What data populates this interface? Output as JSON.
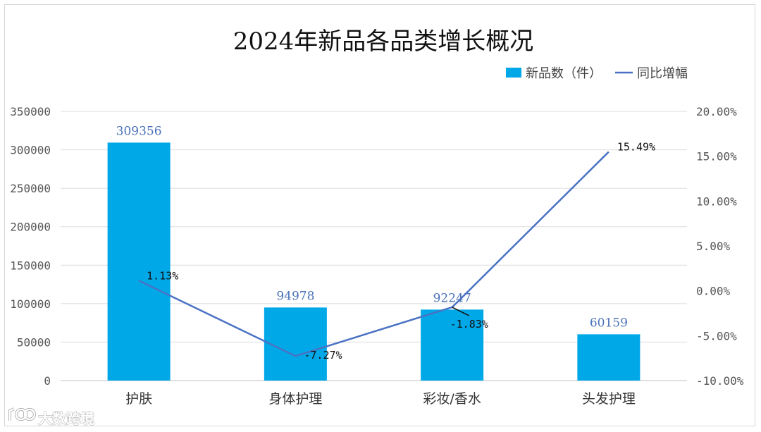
{
  "chart_data": {
    "type": "bar",
    "title": "2024年新品各品类增长概况",
    "categories": [
      "护肤",
      "身体护理",
      "彩妆/香水",
      "头发护理"
    ],
    "series": [
      {
        "name": "新品数（件）",
        "kind": "bar",
        "axis": "left",
        "color": "#00a8e8",
        "values": [
          309356,
          94978,
          92247,
          60159
        ],
        "labels": [
          "309356",
          "94978",
          "92247",
          "60159"
        ]
      },
      {
        "name": "同比增幅",
        "kind": "line",
        "axis": "right",
        "color": "#4a72c4",
        "values": [
          1.13,
          -7.27,
          -1.83,
          15.49
        ],
        "labels": [
          "1.13%",
          "-7.27%",
          "-1.83%",
          "15.49%"
        ]
      }
    ],
    "left_axis": {
      "min": 0,
      "max": 350000,
      "ticks": [
        0,
        50000,
        100000,
        150000,
        200000,
        250000,
        300000,
        350000
      ],
      "tick_labels": [
        "0",
        "50000",
        "100000",
        "150000",
        "200000",
        "250000",
        "300000",
        "350000"
      ]
    },
    "right_axis": {
      "min": -10,
      "max": 20,
      "ticks": [
        -10,
        -5,
        0,
        5,
        10,
        15,
        20
      ],
      "tick_labels": [
        "-10.00%",
        "-5.00%",
        "0.00%",
        "5.00%",
        "10.00%",
        "15.00%",
        "20.00%"
      ]
    },
    "grid": true,
    "legend_position": "top-right"
  },
  "watermark": {
    "text": "大数跨境",
    "icon": "loop-logo-icon"
  }
}
